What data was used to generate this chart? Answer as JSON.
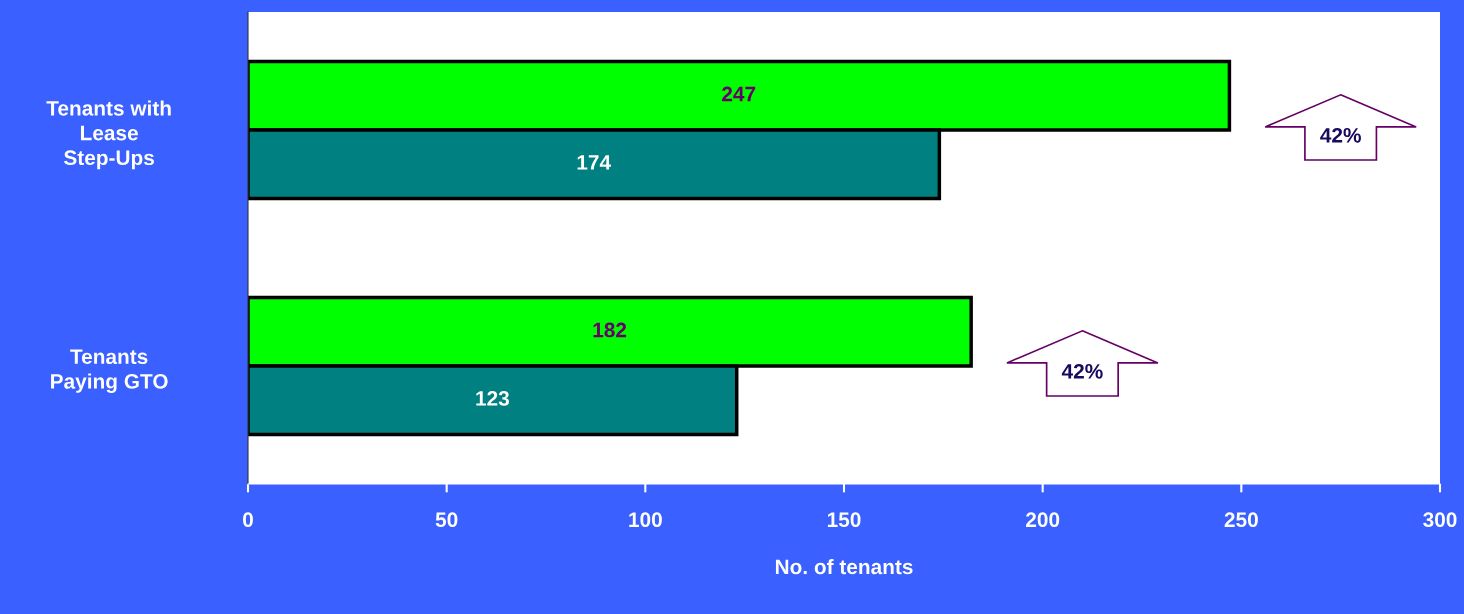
{
  "chart_data": {
    "type": "bar",
    "orientation": "horizontal",
    "categories": [
      "Tenants with\nLease\nStep-Ups",
      "Tenants\nPaying GTO"
    ],
    "series": [
      {
        "color": "#00ff00",
        "values": [
          247,
          182
        ]
      },
      {
        "color": "#008080",
        "values": [
          174,
          123
        ]
      }
    ],
    "data_labels": true,
    "xlim": [
      0,
      300
    ],
    "xticks": [
      0,
      50,
      100,
      150,
      200,
      250,
      300
    ],
    "xlabel": "No. of tenants",
    "grid": false,
    "legend": false,
    "annotations": [
      "42%",
      "42%"
    ]
  }
}
